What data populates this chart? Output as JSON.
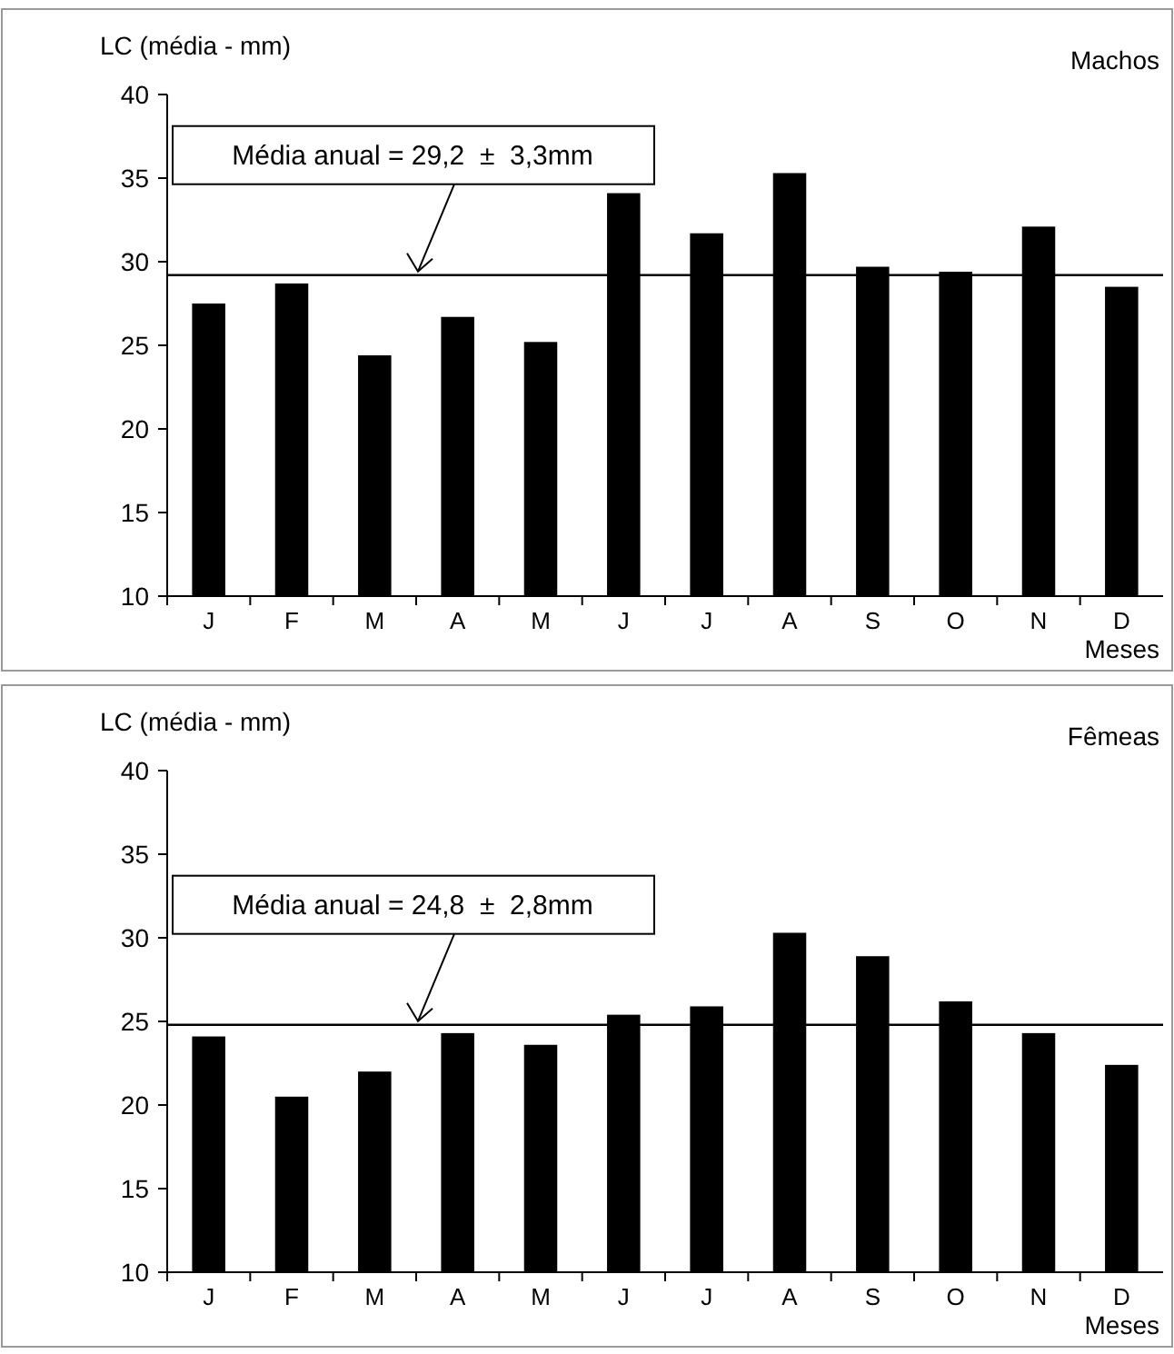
{
  "chart_data": [
    {
      "type": "bar",
      "title": "Machos",
      "ylabel": "LC (média - mm)",
      "xlabel": "Meses",
      "categories": [
        "J",
        "F",
        "M",
        "A",
        "M",
        "J",
        "J",
        "A",
        "S",
        "O",
        "N",
        "D"
      ],
      "values": [
        27.5,
        28.7,
        24.4,
        26.7,
        25.2,
        34.1,
        31.7,
        35.3,
        29.7,
        29.4,
        32.1,
        28.5
      ],
      "color": "#000000",
      "ylim": [
        10,
        40
      ],
      "yticks": [
        10,
        15,
        20,
        25,
        30,
        35,
        40
      ],
      "ref_lines": [
        {
          "axis": "y",
          "value": 29.2,
          "label": "Média anual = 29,2  ±  3,3mm",
          "color": "#000000"
        }
      ]
    },
    {
      "type": "bar",
      "title": "Fêmeas",
      "ylabel": "LC (média - mm)",
      "xlabel": "Meses",
      "categories": [
        "J",
        "F",
        "M",
        "A",
        "M",
        "J",
        "J",
        "A",
        "S",
        "O",
        "N",
        "D"
      ],
      "values": [
        24.1,
        20.5,
        22.0,
        24.3,
        23.6,
        25.4,
        25.9,
        30.3,
        28.9,
        26.2,
        24.3,
        22.4
      ],
      "color": "#000000",
      "ylim": [
        10,
        40
      ],
      "yticks": [
        10,
        15,
        20,
        25,
        30,
        35,
        40
      ],
      "ref_lines": [
        {
          "axis": "y",
          "value": 24.8,
          "label": "Média anual = 24,8  ±  2,8mm",
          "color": "#000000"
        }
      ]
    }
  ]
}
